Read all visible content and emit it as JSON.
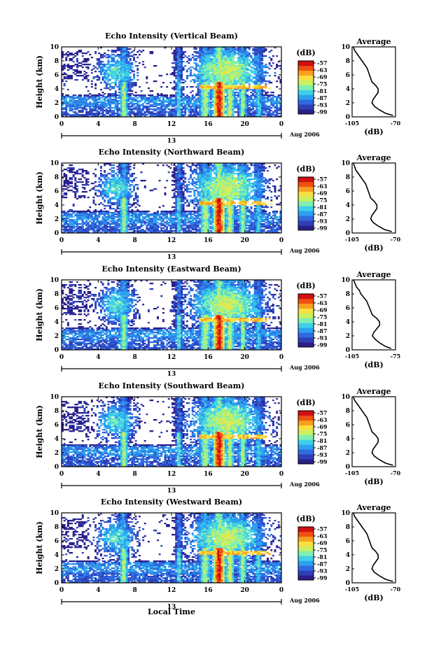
{
  "figure": {
    "xlabel": "Local Time",
    "date_label": "Aug 2006",
    "colorbar_label": "(dB)",
    "colorbar_ticks": [
      "-57",
      "-63",
      "-69",
      "-75",
      "-81",
      "-87",
      "-93",
      "-99"
    ],
    "colorbar_colors": [
      "#2a1f8a",
      "#2f3fb8",
      "#2f6ae0",
      "#2ea0f0",
      "#3fd0e8",
      "#7ff0b0",
      "#c8f060",
      "#f8e040",
      "#f8a020",
      "#f05010",
      "#d01010"
    ],
    "avg_title": "Average",
    "avg_xlabel": "(dB)"
  },
  "chart_data": [
    {
      "type": "heatmap",
      "title": "Echo Intensity (Vertical Beam)",
      "ylabel": "Height (km)",
      "x_ticks": [
        "0",
        "4",
        "8",
        "12",
        "16",
        "20",
        "0"
      ],
      "day_tick": "13",
      "y_ticks": [
        "0",
        "2",
        "4",
        "6",
        "8",
        "10"
      ],
      "xlim": [
        0,
        24
      ],
      "ylim": [
        0,
        10
      ],
      "average": {
        "type": "line",
        "title": "Average",
        "x_ticks": [
          "-105",
          "-70"
        ],
        "y_ticks": [
          "0",
          "2",
          "4",
          "6",
          "8",
          "10"
        ],
        "height": [
          0.2,
          0.5,
          1.0,
          1.5,
          2.0,
          2.5,
          3.0,
          3.5,
          4.0,
          4.5,
          5.0,
          5.5,
          6.0,
          6.5,
          7.0,
          7.5,
          8.0,
          8.5,
          9.0,
          9.5,
          10.0
        ],
        "value": [
          -72,
          -78,
          -83,
          -87,
          -89,
          -88,
          -86,
          -84,
          -84,
          -86,
          -89,
          -90,
          -91,
          -92,
          -93,
          -95,
          -97,
          -99,
          -101,
          -103,
          -104
        ]
      }
    },
    {
      "type": "heatmap",
      "title": "Echo Intensity (Northward Beam)",
      "ylabel": "Height (km)",
      "x_ticks": [
        "0",
        "4",
        "8",
        "12",
        "16",
        "20",
        "0"
      ],
      "day_tick": "13",
      "y_ticks": [
        "0",
        "2",
        "4",
        "6",
        "8",
        "10"
      ],
      "xlim": [
        0,
        24
      ],
      "ylim": [
        0,
        10
      ],
      "average": {
        "type": "line",
        "title": "Average",
        "x_ticks": [
          "-105",
          "-70"
        ],
        "y_ticks": [
          "0",
          "2",
          "4",
          "6",
          "8",
          "10"
        ],
        "height": [
          0.2,
          0.5,
          1.0,
          1.5,
          2.0,
          2.5,
          3.0,
          3.5,
          4.0,
          4.5,
          5.0,
          5.5,
          6.0,
          6.5,
          7.0,
          7.5,
          8.0,
          8.5,
          9.0,
          9.5,
          10.0
        ],
        "value": [
          -73,
          -79,
          -84,
          -88,
          -90,
          -89,
          -87,
          -85,
          -85,
          -87,
          -90,
          -91,
          -92,
          -93,
          -94,
          -96,
          -98,
          -100,
          -102,
          -103,
          -104
        ]
      }
    },
    {
      "type": "heatmap",
      "title": "Echo Intensity (Eastward Beam)",
      "ylabel": "Height (km)",
      "x_ticks": [
        "0",
        "4",
        "8",
        "12",
        "16",
        "20",
        "0"
      ],
      "day_tick": "13",
      "y_ticks": [
        "0",
        "2",
        "4",
        "6",
        "8",
        "10"
      ],
      "xlim": [
        0,
        24
      ],
      "ylim": [
        0,
        10
      ],
      "average": {
        "type": "line",
        "title": "Average",
        "x_ticks": [
          "-105",
          "-75"
        ],
        "y_ticks": [
          "0",
          "2",
          "4",
          "6",
          "8",
          "10"
        ],
        "height": [
          0.2,
          0.5,
          1.0,
          1.5,
          2.0,
          2.5,
          3.0,
          3.5,
          4.0,
          4.5,
          5.0,
          5.5,
          6.0,
          6.5,
          7.0,
          7.5,
          8.0,
          8.5,
          9.0,
          9.5,
          10.0
        ],
        "value": [
          -78,
          -82,
          -86,
          -89,
          -91,
          -90,
          -88,
          -86,
          -86,
          -88,
          -91,
          -92,
          -93,
          -94,
          -95,
          -97,
          -99,
          -100,
          -102,
          -103,
          -104
        ]
      }
    },
    {
      "type": "heatmap",
      "title": "Echo Intensity (Southward Beam)",
      "ylabel": "Height (km)",
      "x_ticks": [
        "0",
        "4",
        "8",
        "12",
        "16",
        "20",
        "0"
      ],
      "day_tick": "13",
      "y_ticks": [
        "0",
        "2",
        "4",
        "6",
        "8",
        "10"
      ],
      "xlim": [
        0,
        24
      ],
      "ylim": [
        0,
        10
      ],
      "average": {
        "type": "line",
        "title": "Average",
        "x_ticks": [
          "-105",
          "-70"
        ],
        "y_ticks": [
          "0",
          "2",
          "4",
          "6",
          "8",
          "10"
        ],
        "height": [
          0.2,
          0.5,
          1.0,
          1.5,
          2.0,
          2.5,
          3.0,
          3.5,
          4.0,
          4.5,
          5.0,
          5.5,
          6.0,
          6.5,
          7.0,
          7.5,
          8.0,
          8.5,
          9.0,
          9.5,
          10.0
        ],
        "value": [
          -72,
          -78,
          -83,
          -87,
          -89,
          -88,
          -86,
          -84,
          -84,
          -86,
          -89,
          -90,
          -91,
          -92,
          -93,
          -95,
          -97,
          -99,
          -101,
          -103,
          -104
        ]
      }
    },
    {
      "type": "heatmap",
      "title": "Echo Intensity (Westward Beam)",
      "ylabel": "Height (km)",
      "x_ticks": [
        "0",
        "4",
        "8",
        "12",
        "16",
        "20",
        "0"
      ],
      "day_tick": "13",
      "y_ticks": [
        "0",
        "2",
        "4",
        "6",
        "8",
        "10"
      ],
      "xlim": [
        0,
        24
      ],
      "ylim": [
        0,
        10
      ],
      "average": {
        "type": "line",
        "title": "Average",
        "x_ticks": [
          "-105",
          "-70"
        ],
        "y_ticks": [
          "0",
          "2",
          "4",
          "6",
          "8",
          "10"
        ],
        "height": [
          0.2,
          0.5,
          1.0,
          1.5,
          2.0,
          2.5,
          3.0,
          3.5,
          4.0,
          4.5,
          5.0,
          5.5,
          6.0,
          6.5,
          7.0,
          7.5,
          8.0,
          8.5,
          9.0,
          9.5,
          10.0
        ],
        "value": [
          -72,
          -78,
          -83,
          -87,
          -89,
          -88,
          -86,
          -84,
          -84,
          -86,
          -89,
          -90,
          -91,
          -92,
          -93,
          -95,
          -97,
          -99,
          -101,
          -103,
          -104
        ]
      }
    }
  ]
}
